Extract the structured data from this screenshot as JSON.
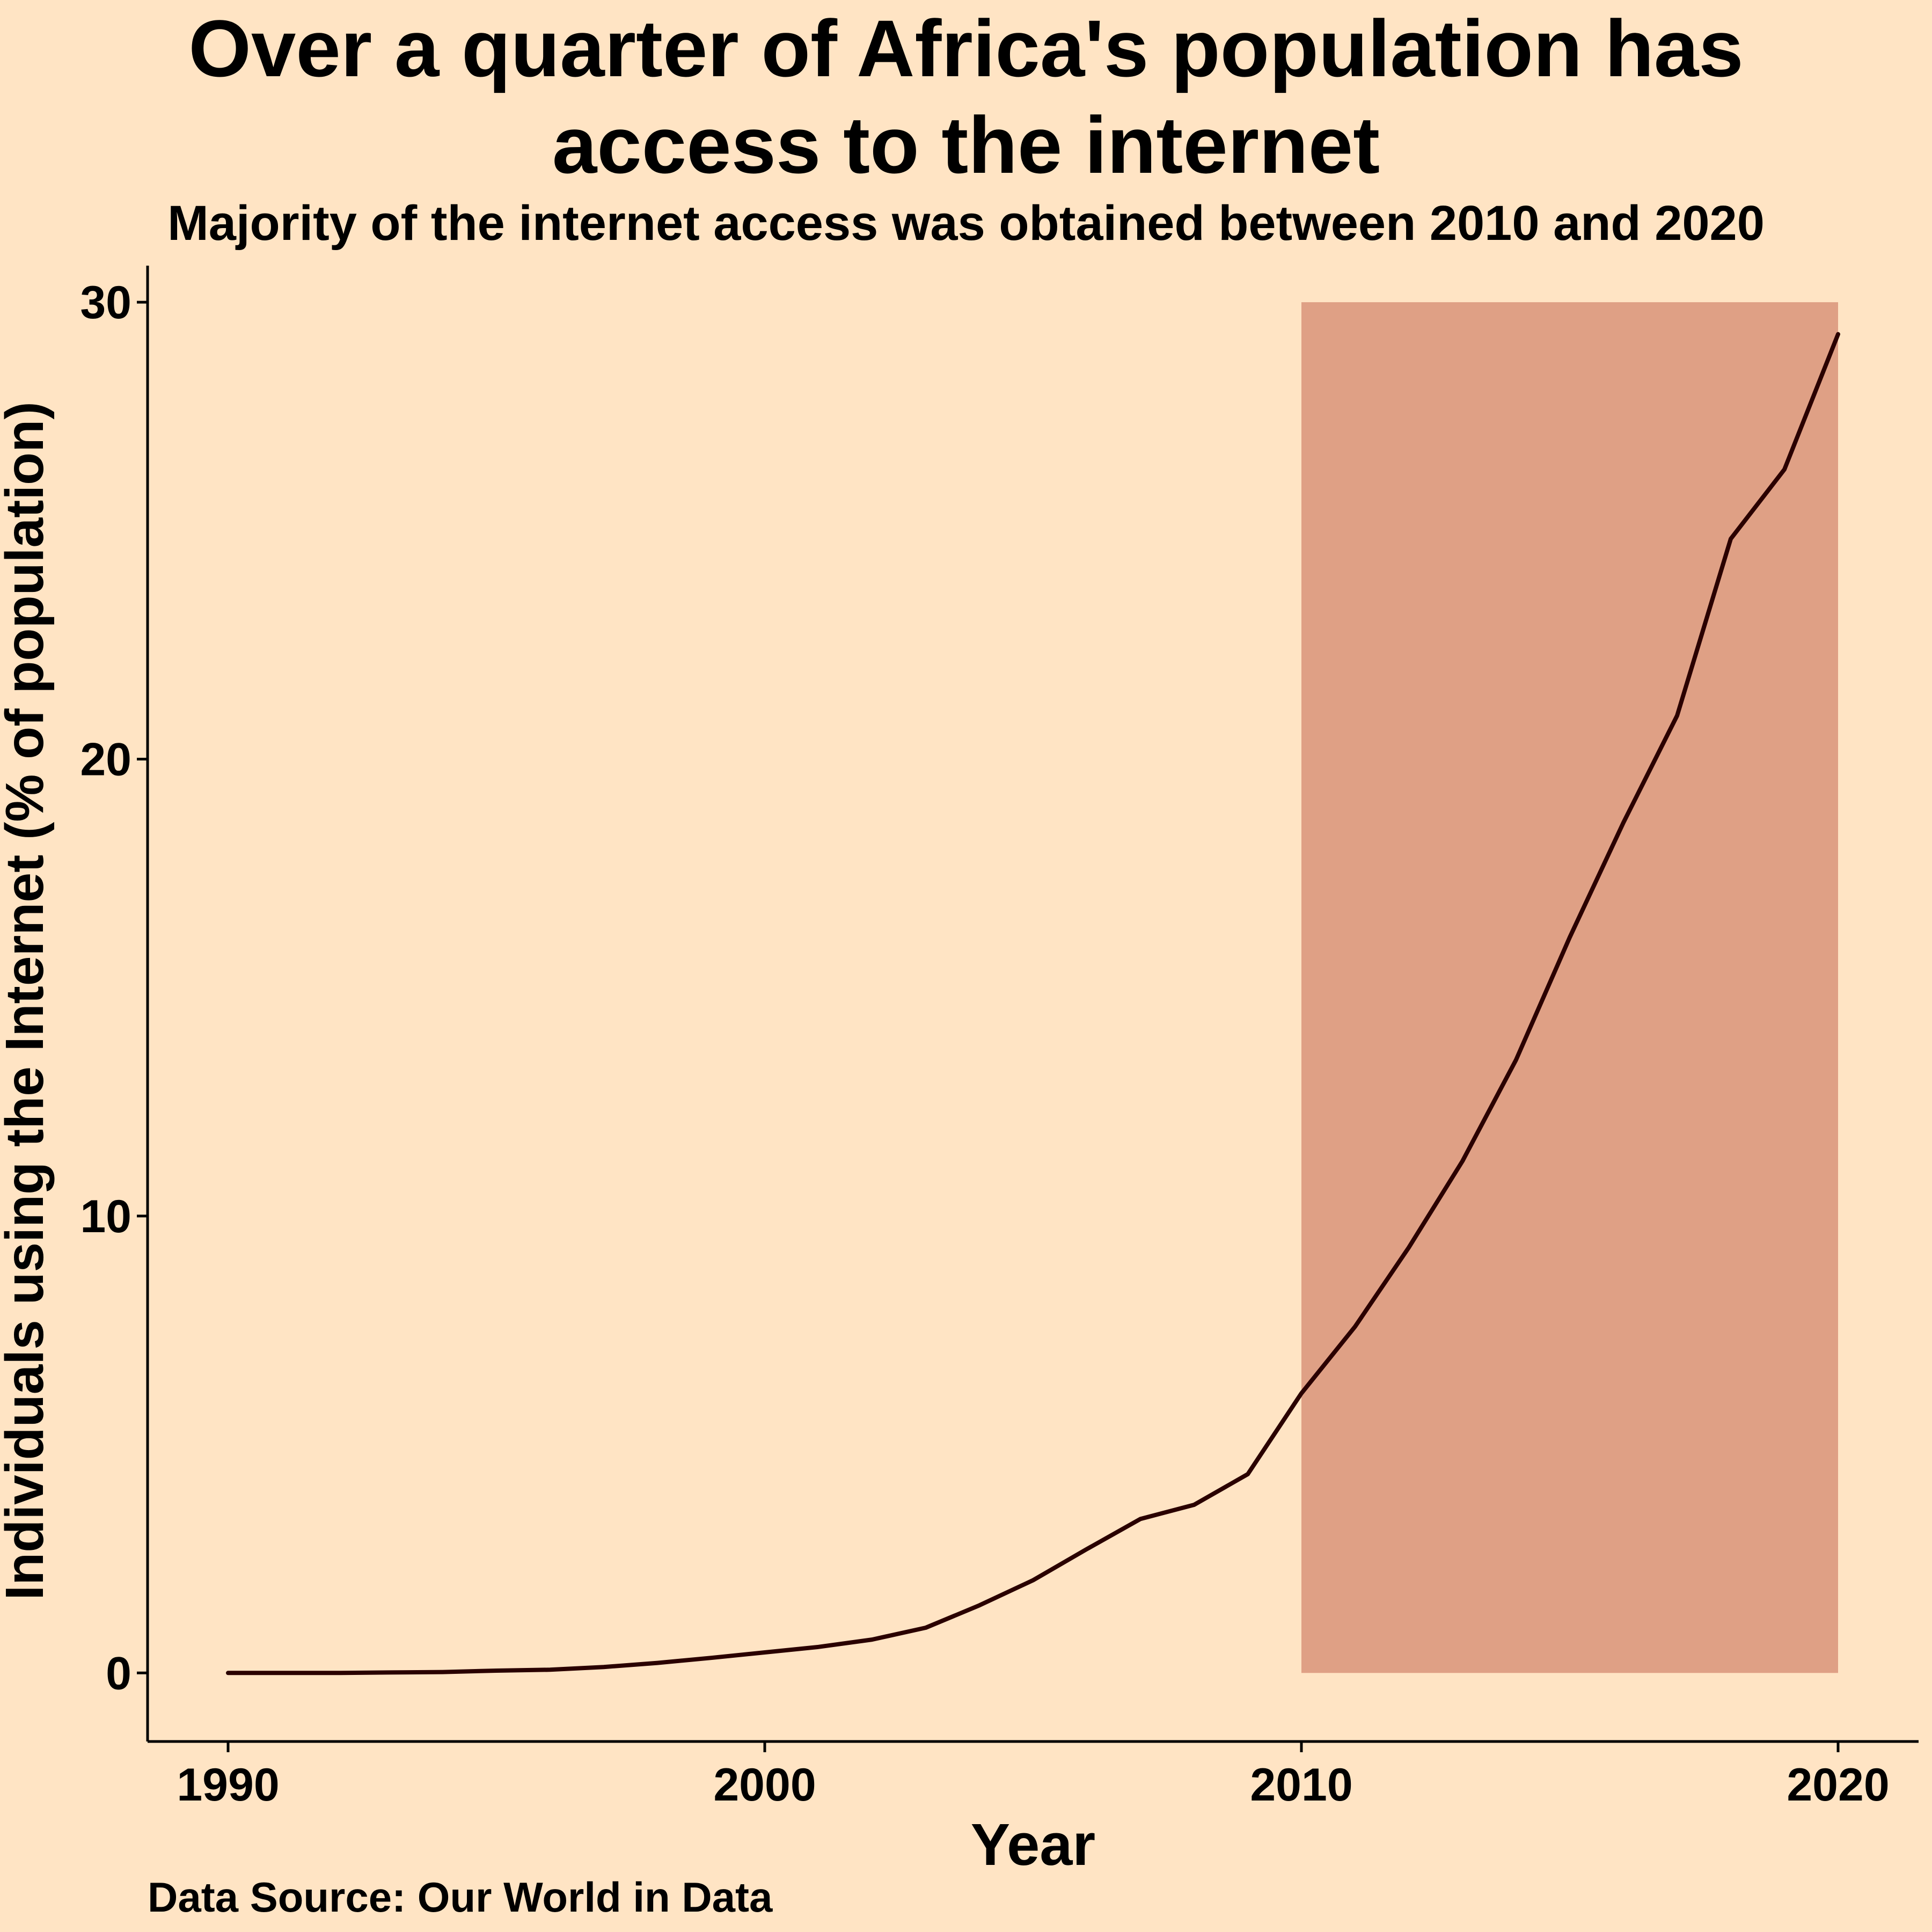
{
  "title_lines": [
    "Over a quarter of Africa's population has",
    "access to the internet"
  ],
  "subtitle": "Majority of the internet access was obtained between 2010 and 2020",
  "source": "Data Source: Our World in Data",
  "chart_data": {
    "type": "line",
    "xlabel": "Year",
    "ylabel": "Individuals using the Internet (% of population)",
    "xlim": [
      1988.5,
      2021.5
    ],
    "ylim": [
      -1.5,
      30.8
    ],
    "xticks": [
      1990,
      2000,
      2010,
      2020
    ],
    "yticks": [
      0,
      10,
      20,
      30
    ],
    "grid": false,
    "line_color": "#2A0000",
    "highlight": {
      "x_start": 2010,
      "x_end": 2020,
      "y_start": 0,
      "y_end": 30,
      "color": "#DFA085"
    },
    "x": [
      1990,
      1991,
      1992,
      1993,
      1994,
      1995,
      1996,
      1997,
      1998,
      1999,
      2000,
      2001,
      2002,
      2003,
      2004,
      2005,
      2006,
      2007,
      2008,
      2009,
      2010,
      2011,
      2012,
      2013,
      2014,
      2015,
      2016,
      2017,
      2018,
      2019,
      2020
    ],
    "values": [
      0.0,
      0.0,
      0.0,
      0.01,
      0.02,
      0.05,
      0.07,
      0.13,
      0.22,
      0.33,
      0.45,
      0.57,
      0.73,
      0.99,
      1.48,
      2.03,
      2.71,
      3.37,
      3.68,
      4.35,
      6.12,
      7.58,
      9.31,
      11.2,
      13.42,
      16.1,
      18.61,
      20.95,
      24.82,
      26.34,
      29.3
    ]
  }
}
